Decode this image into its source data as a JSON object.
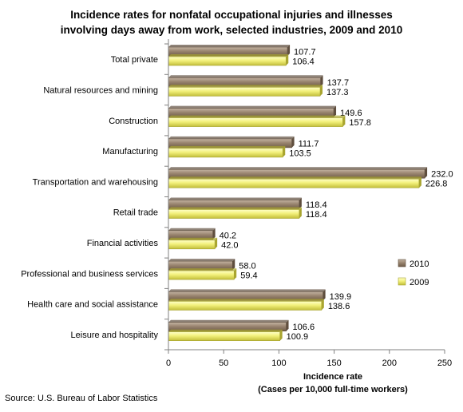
{
  "chart_data": {
    "type": "bar",
    "orientation": "horizontal",
    "title": "Incidence rates for nonfatal occupational injuries and illnesses involving days away from work, selected industries, 2009 and 2010",
    "title_lines": [
      "Incidence rates for nonfatal occupational injuries and illnesses",
      "involving days away from work, selected industries, 2009 and 2010"
    ],
    "categories": [
      "Total private",
      "Natural  resources and mining",
      "Construction",
      "Manufacturing",
      "Transportation  and warehousing",
      "Retail trade",
      "Financial  activities",
      "Professional and business services",
      "Health care and social assistance",
      "Leisure and hospitality"
    ],
    "series": [
      {
        "name": "2010",
        "color": "#9a8570",
        "values": [
          107.7,
          137.7,
          149.6,
          111.7,
          232.0,
          118.4,
          40.2,
          58.0,
          139.9,
          106.6
        ]
      },
      {
        "name": "2009",
        "color": "#f2f07a",
        "values": [
          106.4,
          137.3,
          157.8,
          103.5,
          226.8,
          118.4,
          42.0,
          59.4,
          138.6,
          100.9
        ]
      }
    ],
    "data_labels": [
      [
        "107.7",
        "137.7",
        "149.6",
        "111.7",
        "232.0",
        "118.4",
        "40.2",
        "58.0",
        "139.9",
        "106.6"
      ],
      [
        "106.4",
        "137.3",
        "157.8",
        "103.5",
        "226.8",
        "118.4",
        "42.0",
        "59.4",
        "138.6",
        "100.9"
      ]
    ],
    "xlabel_lines": [
      "Incidence rate",
      "(Cases per 10,000 full-time workers)"
    ],
    "xlim": [
      0,
      250
    ],
    "xticks": [
      "0",
      "50",
      "100",
      "150",
      "200",
      "250"
    ],
    "grid": false,
    "legend_position": "right",
    "legend": [
      "2010",
      "2009"
    ]
  },
  "source": "Source: U.S. Bureau of Labor Statistics"
}
